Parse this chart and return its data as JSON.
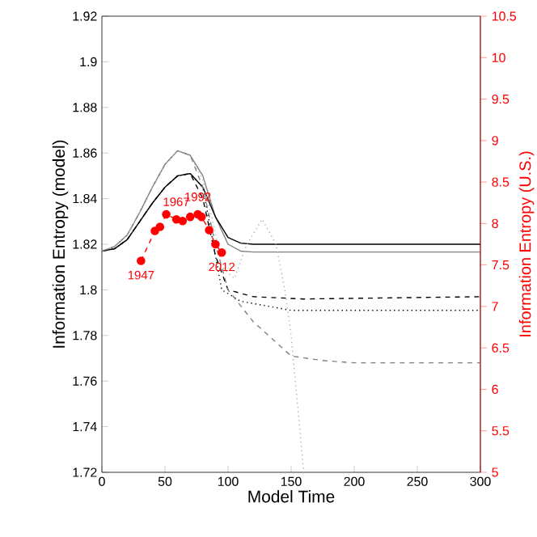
{
  "chart_data": {
    "type": "line",
    "xlabel": "Model Time",
    "ylabel": "Information Entropy (model)",
    "y2label": "Information Entropy (U.S.)",
    "xlim": [
      0,
      300
    ],
    "xticks": [
      0,
      50,
      100,
      150,
      200,
      250,
      300
    ],
    "ylim": [
      1.72,
      1.92
    ],
    "yticks": [
      1.72,
      1.74,
      1.76,
      1.78,
      1.8,
      1.82,
      1.84,
      1.86,
      1.88,
      1.9,
      1.92
    ],
    "y2lim": [
      5,
      10.5
    ],
    "y2ticks": [
      5,
      5.5,
      6,
      6.5,
      7,
      7.5,
      8,
      8.5,
      9,
      9.5,
      10,
      10.5
    ],
    "grid": false,
    "series": [
      {
        "color": "#808080",
        "line_style": "solid",
        "x": [
          0,
          10,
          20,
          30,
          40,
          50,
          60,
          70,
          80,
          90,
          100,
          110,
          120,
          150,
          300
        ],
        "values": [
          1.817,
          1.819,
          1.824,
          1.834,
          1.845,
          1.855,
          1.861,
          1.859,
          1.85,
          1.832,
          1.82,
          1.817,
          1.8166,
          1.8166,
          1.8166
        ]
      },
      {
        "color": "#000000",
        "line_style": "solid",
        "x": [
          0,
          10,
          20,
          30,
          40,
          50,
          60,
          70,
          80,
          90,
          100,
          110,
          120,
          150,
          300
        ],
        "values": [
          1.817,
          1.818,
          1.822,
          1.83,
          1.838,
          1.845,
          1.85,
          1.851,
          1.845,
          1.832,
          1.823,
          1.8205,
          1.82,
          1.82,
          1.82
        ]
      },
      {
        "color": "#000000",
        "line_style": "dashed",
        "x": [
          0,
          10,
          20,
          30,
          40,
          50,
          60,
          70,
          80,
          90,
          100,
          120,
          160,
          300
        ],
        "values": [
          1.817,
          1.818,
          1.822,
          1.83,
          1.838,
          1.845,
          1.85,
          1.851,
          1.84,
          1.815,
          1.8,
          1.797,
          1.796,
          1.797
        ]
      },
      {
        "color": "#000000",
        "line_style": "dotted",
        "x": [
          0,
          10,
          20,
          30,
          40,
          50,
          60,
          70,
          80,
          85,
          95,
          110,
          150,
          300
        ],
        "values": [
          1.817,
          1.818,
          1.822,
          1.83,
          1.838,
          1.845,
          1.85,
          1.851,
          1.845,
          1.83,
          1.8,
          1.795,
          1.791,
          1.791
        ]
      },
      {
        "color": "#808080",
        "line_style": "dashed",
        "x": [
          0,
          10,
          20,
          30,
          40,
          50,
          60,
          70,
          80,
          90,
          100,
          120,
          150,
          175,
          200,
          300
        ],
        "values": [
          1.817,
          1.819,
          1.824,
          1.834,
          1.845,
          1.855,
          1.861,
          1.859,
          1.845,
          1.82,
          1.8,
          1.786,
          1.771,
          1.769,
          1.768,
          1.768
        ]
      },
      {
        "color": "#b0b0b0",
        "line_style": "dotted",
        "x": [
          0,
          10,
          20,
          30,
          40,
          50,
          60,
          70,
          80,
          88,
          95,
          105,
          115,
          127,
          138,
          145,
          150,
          155,
          160
        ],
        "values": [
          1.817,
          1.819,
          1.824,
          1.834,
          1.845,
          1.855,
          1.861,
          1.859,
          1.848,
          1.83,
          1.81,
          1.805,
          1.82,
          1.831,
          1.82,
          1.8,
          1.78,
          1.75,
          1.72
        ]
      },
      {
        "color": "#ff0000",
        "line_style": "dashed",
        "marker": "circle",
        "axis": "y2",
        "x": [
          31,
          42,
          46,
          51,
          59,
          64,
          70,
          76,
          79,
          85,
          90,
          95
        ],
        "values": [
          7.55,
          7.91,
          7.96,
          8.11,
          8.05,
          8.03,
          8.08,
          8.11,
          8.08,
          7.92,
          7.75,
          7.65
        ]
      }
    ],
    "annotations": [
      "1947",
      "1967",
      "1992",
      "2012"
    ]
  }
}
